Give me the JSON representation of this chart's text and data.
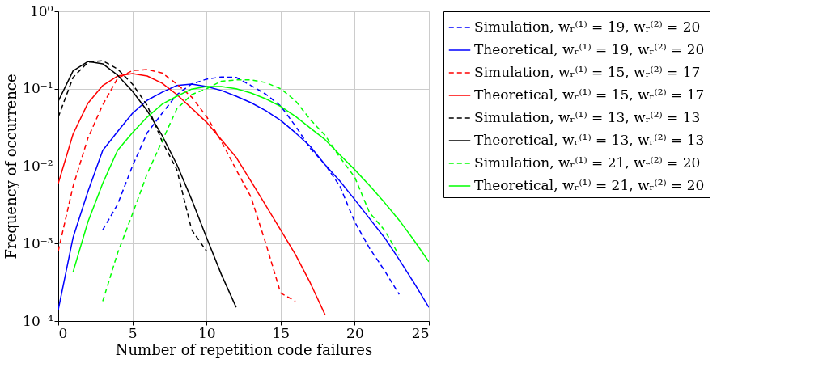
{
  "chart_data": {
    "type": "line",
    "xlabel": "Number of repetition code failures",
    "ylabel": "Frequency of occurrence",
    "log": "y",
    "grid": true,
    "legend": "right",
    "xlim": [
      0,
      25
    ],
    "xticks": [
      0,
      5,
      10,
      15,
      20,
      25
    ],
    "ylim": [
      0.0001,
      1
    ],
    "yticks": [
      {
        "value": 0.0001,
        "label": "10⁻⁴"
      },
      {
        "value": 0.001,
        "label": "10⁻³"
      },
      {
        "value": 0.01,
        "label": "10⁻²"
      },
      {
        "value": 0.1,
        "label": "10⁻¹"
      },
      {
        "value": 1,
        "label": "10⁰"
      }
    ],
    "series": [
      {
        "name": "Simulation, wᵣ⁽¹⁾ = 19, wᵣ⁽²⁾ = 20",
        "color": "#0000ff",
        "line_style": "dashed",
        "x": [
          3,
          4,
          5,
          6,
          7,
          8,
          9,
          10,
          11,
          12,
          13,
          14,
          15,
          16,
          17,
          18,
          19,
          20,
          21,
          22,
          23
        ],
        "values": [
          0.0015,
          0.0032,
          0.01,
          0.027,
          0.048,
          0.084,
          0.115,
          0.133,
          0.142,
          0.14,
          0.11,
          0.085,
          0.06,
          0.033,
          0.017,
          0.0105,
          0.0055,
          0.0019,
          0.00087,
          0.00045,
          0.00022
        ]
      },
      {
        "name": "Theoretical, wᵣ⁽¹⁾ = 19, wᵣ⁽²⁾ = 20",
        "color": "#0000ff",
        "line_style": "solid",
        "x": [
          0,
          1,
          2,
          3,
          4,
          5,
          6,
          7,
          8,
          9,
          10,
          11,
          12,
          13,
          14,
          15,
          16,
          17,
          18,
          19,
          20,
          21,
          22,
          23,
          24,
          25
        ],
        "values": [
          0.00014,
          0.0012,
          0.0047,
          0.016,
          0.028,
          0.048,
          0.071,
          0.09,
          0.11,
          0.115,
          0.107,
          0.095,
          0.08,
          0.066,
          0.052,
          0.039,
          0.027,
          0.018,
          0.0104,
          0.0064,
          0.0037,
          0.0021,
          0.0012,
          0.00062,
          0.00031,
          0.00015
        ]
      },
      {
        "name": "Simulation, wᵣ⁽¹⁾ = 15, wᵣ⁽²⁾ = 17",
        "color": "#ff0000",
        "line_style": "dashed",
        "x": [
          0,
          1,
          2,
          3,
          4,
          5,
          6,
          7,
          8,
          9,
          10,
          11,
          12,
          13,
          14,
          15,
          16
        ],
        "values": [
          0.0008,
          0.0055,
          0.023,
          0.062,
          0.136,
          0.172,
          0.177,
          0.16,
          0.115,
          0.078,
          0.044,
          0.021,
          0.009,
          0.004,
          0.001,
          0.00023,
          0.00018
        ]
      },
      {
        "name": "Theoretical, wᵣ⁽¹⁾ = 15, wᵣ⁽²⁾ = 17",
        "color": "#ff0000",
        "line_style": "solid",
        "x": [
          0,
          1,
          2,
          3,
          4,
          5,
          6,
          7,
          8,
          9,
          10,
          11,
          12,
          13,
          14,
          15,
          16,
          17,
          18
        ],
        "values": [
          0.006,
          0.026,
          0.065,
          0.11,
          0.146,
          0.157,
          0.146,
          0.118,
          0.084,
          0.056,
          0.037,
          0.022,
          0.013,
          0.0064,
          0.0031,
          0.0015,
          0.00072,
          0.00031,
          0.00012
        ]
      },
      {
        "name": "Simulation, wᵣ⁽¹⁾ = 13, wᵣ⁽²⁾ = 13",
        "color": "#000000",
        "line_style": "dashed",
        "x": [
          0,
          1,
          2,
          3,
          4,
          5,
          6,
          7,
          8,
          9,
          10
        ],
        "values": [
          0.043,
          0.14,
          0.22,
          0.23,
          0.18,
          0.115,
          0.061,
          0.021,
          0.009,
          0.0015,
          0.0008
        ]
      },
      {
        "name": "Theoretical, wᵣ⁽¹⁾ = 13, wᵣ⁽²⁾ = 13",
        "color": "#000000",
        "line_style": "solid",
        "x": [
          0,
          1,
          2,
          3,
          4,
          5,
          6,
          7,
          8,
          9,
          10,
          11,
          12
        ],
        "values": [
          0.069,
          0.17,
          0.225,
          0.21,
          0.15,
          0.093,
          0.052,
          0.025,
          0.0105,
          0.0037,
          0.0012,
          0.0004,
          0.00015
        ]
      },
      {
        "name": "Simulation, wᵣ⁽¹⁾ = 21, wᵣ⁽²⁾ = 20",
        "color": "#00ff00",
        "line_style": "dashed",
        "x": [
          3,
          4,
          5,
          6,
          7,
          8,
          9,
          10,
          11,
          12,
          13,
          14,
          15,
          16,
          17,
          18,
          19,
          20,
          21,
          22,
          23
        ],
        "values": [
          0.00018,
          0.00075,
          0.0024,
          0.008,
          0.021,
          0.055,
          0.084,
          0.1,
          0.125,
          0.13,
          0.13,
          0.12,
          0.1,
          0.07,
          0.04,
          0.025,
          0.013,
          0.0072,
          0.0025,
          0.0015,
          0.0007
        ]
      },
      {
        "name": "Theoretical, wᵣ⁽¹⁾ = 21, wᵣ⁽²⁾ = 20",
        "color": "#00ff00",
        "line_style": "solid",
        "x": [
          1,
          2,
          3,
          4,
          5,
          6,
          7,
          8,
          9,
          10,
          11,
          12,
          13,
          14,
          15,
          16,
          17,
          18,
          19,
          20,
          21,
          22,
          23,
          24,
          25
        ],
        "values": [
          0.00043,
          0.0019,
          0.006,
          0.016,
          0.027,
          0.043,
          0.063,
          0.08,
          0.099,
          0.107,
          0.107,
          0.1,
          0.088,
          0.074,
          0.059,
          0.044,
          0.031,
          0.022,
          0.014,
          0.009,
          0.0056,
          0.0034,
          0.002,
          0.0011,
          0.00058
        ]
      }
    ]
  }
}
